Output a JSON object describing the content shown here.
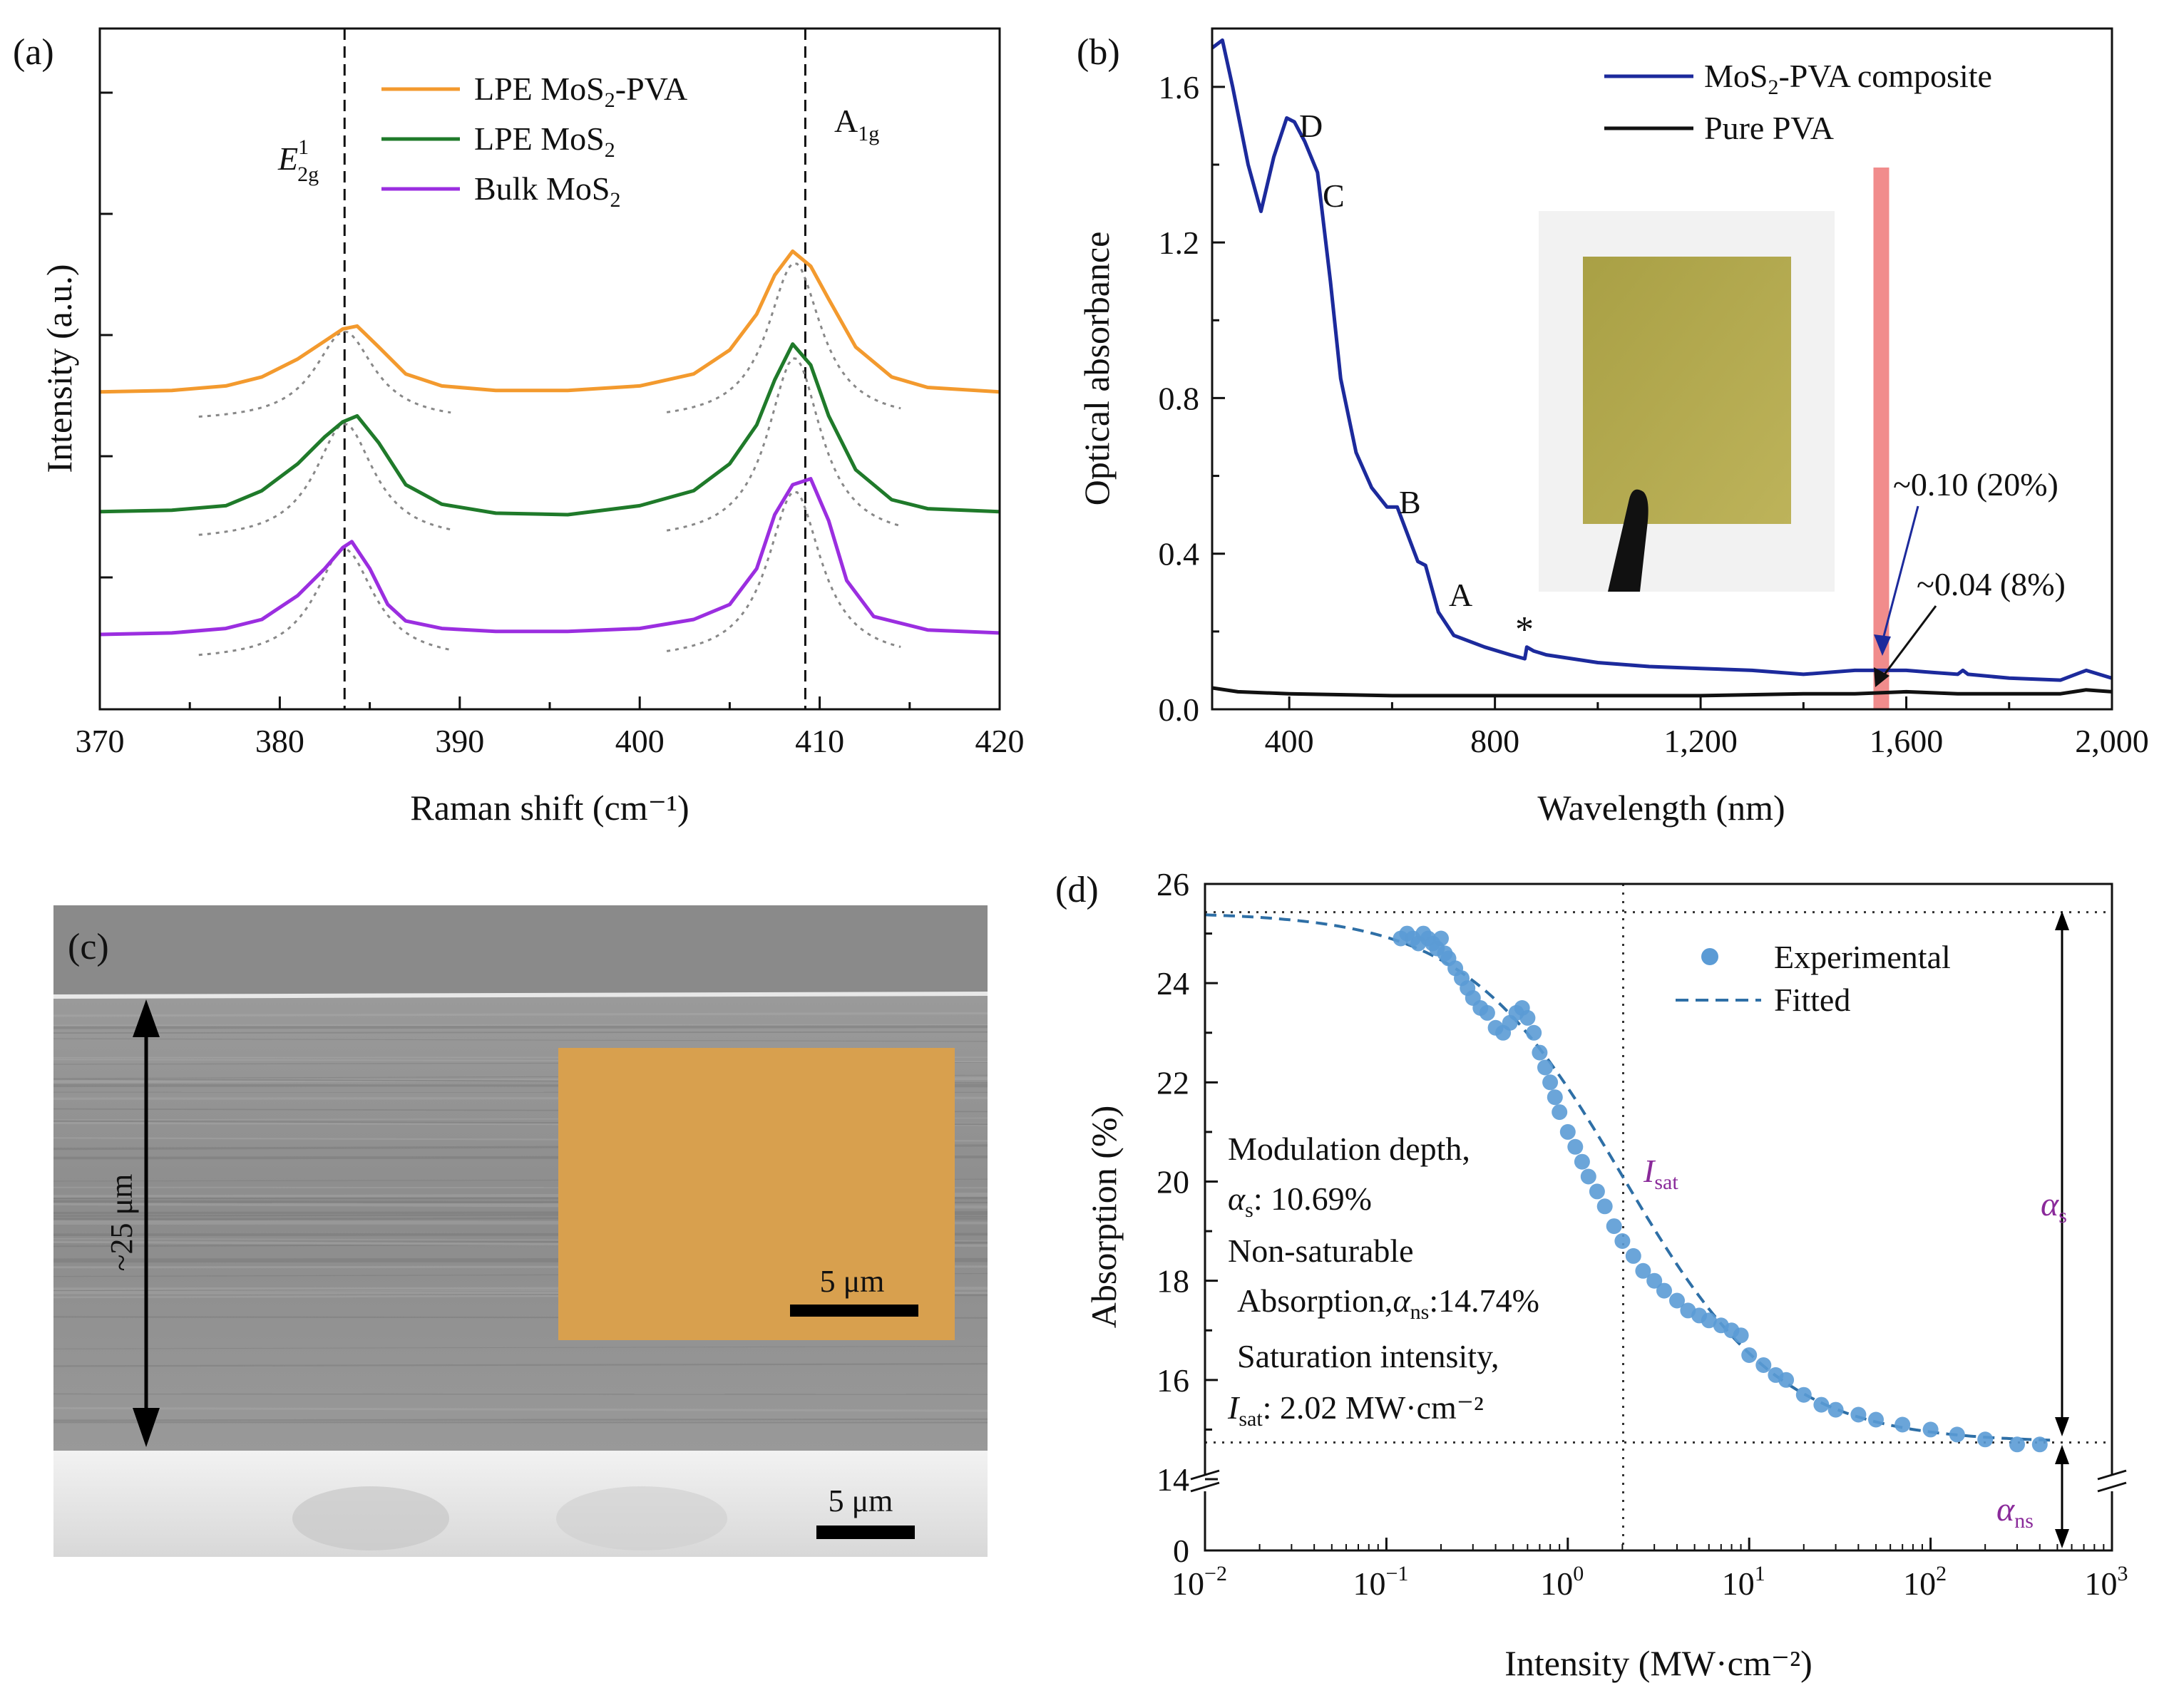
{
  "colors": {
    "lpe_mos2_pva": "#f39a2e",
    "lpe_mos2": "#1f7a2a",
    "bulk_mos2": "#9b2ee0",
    "composite": "#1c2a9c",
    "pure_pva": "#111111",
    "laser_band": "#f08080",
    "experimental": "#5b9bd5",
    "fitted": "#2e6fa6",
    "annotation_purple": "#8a2a9a",
    "sem_inset": "#d8a04e"
  },
  "chart_data": [
    {
      "panel": "(a)",
      "type": "line",
      "xlabel": "Raman shift (cm⁻¹)",
      "ylabel": "Intensity (a.u.)",
      "xlim": [
        370,
        420
      ],
      "xticks": [
        "370",
        "380",
        "390",
        "400",
        "410",
        "420"
      ],
      "y_ticks_labeled": false,
      "legend": [
        "LPE MoS₂-PVA",
        "LPE MoS₂",
        "Bulk MoS₂"
      ],
      "legend_position": "top-center",
      "peak_labels": {
        "e2g": "E",
        "e2g_sup": "1",
        "e2g_sub": "2g",
        "a1g": "A",
        "a1g_sub": "1g"
      },
      "reference_lines": [
        383.6,
        409.2
      ],
      "series": [
        {
          "name": "LPE MoS₂-PVA",
          "color_key": "lpe_mos2_pva",
          "offset": 8,
          "x": [
            370,
            374,
            377,
            379,
            381,
            382.5,
            383.5,
            384.3,
            385.5,
            387,
            389,
            392,
            396,
            400,
            403,
            405,
            406.5,
            407.5,
            408.5,
            409.5,
            410.5,
            412,
            414,
            416,
            420
          ],
          "y": [
            0.1,
            0.15,
            0.3,
            0.6,
            1.2,
            1.8,
            2.2,
            2.3,
            1.6,
            0.7,
            0.3,
            0.15,
            0.15,
            0.3,
            0.7,
            1.5,
            2.7,
            4.0,
            4.8,
            4.3,
            3.2,
            1.6,
            0.6,
            0.25,
            0.1
          ]
        },
        {
          "name": "LPE MoS₂",
          "color_key": "lpe_mos2",
          "offset": 4,
          "x": [
            370,
            374,
            377,
            379,
            381,
            382.5,
            383.5,
            384.3,
            385.5,
            387,
            389,
            392,
            396,
            400,
            403,
            405,
            406.5,
            407.5,
            408.5,
            409.5,
            410.5,
            412,
            414,
            416,
            420
          ],
          "y": [
            0.1,
            0.15,
            0.3,
            0.8,
            1.7,
            2.6,
            3.1,
            3.3,
            2.4,
            1.0,
            0.35,
            0.05,
            0.0,
            0.3,
            0.8,
            1.7,
            3.0,
            4.5,
            5.7,
            5.0,
            3.3,
            1.5,
            0.5,
            0.2,
            0.1
          ]
        },
        {
          "name": "Bulk MoS₂",
          "color_key": "bulk_mos2",
          "offset": 0,
          "x": [
            370,
            374,
            377,
            379,
            381,
            382.5,
            383.5,
            384,
            385,
            386,
            387,
            389,
            392,
            396,
            400,
            403,
            405,
            406.5,
            407.5,
            408.5,
            409.5,
            410.5,
            411.5,
            413,
            416,
            420
          ],
          "y": [
            0.0,
            0.05,
            0.2,
            0.5,
            1.3,
            2.2,
            2.9,
            3.1,
            2.2,
            1.0,
            0.45,
            0.2,
            0.1,
            0.1,
            0.2,
            0.5,
            1.0,
            2.2,
            4.0,
            5.0,
            5.2,
            3.8,
            1.8,
            0.6,
            0.15,
            0.05
          ]
        }
      ]
    },
    {
      "panel": "(b)",
      "type": "line",
      "xlabel": "Wavelength (nm)",
      "ylabel": "Optical absorbance",
      "xlim": [
        250,
        2000
      ],
      "ylim": [
        0,
        1.75
      ],
      "xticks": [
        "400",
        "800",
        "1,200",
        "1,600",
        "2,000"
      ],
      "yticks": [
        "0.0",
        "0.4",
        "0.8",
        "1.2",
        "1.6"
      ],
      "legend": [
        "MoS₂-PVA composite",
        "Pure PVA"
      ],
      "legend_position": "top-right",
      "peak_letters": [
        "D",
        "C",
        "B",
        "A",
        "*"
      ],
      "annotations": [
        "~0.10 (20%)",
        "~0.04 (8%)"
      ],
      "laser_wavelength_nm": 1550,
      "inset": "photograph of MoS₂-PVA composite film held by tweezers",
      "series": [
        {
          "name": "MoS₂-PVA composite",
          "color_key": "composite",
          "x": [
            250,
            270,
            290,
            320,
            345,
            370,
            395,
            410,
            430,
            455,
            480,
            500,
            530,
            560,
            590,
            610,
            630,
            650,
            665,
            690,
            720,
            780,
            830,
            858,
            862,
            875,
            900,
            1000,
            1100,
            1200,
            1300,
            1400,
            1500,
            1600,
            1650,
            1700,
            1710,
            1720,
            1800,
            1900,
            1950,
            2000
          ],
          "y": [
            1.7,
            1.72,
            1.6,
            1.4,
            1.28,
            1.42,
            1.52,
            1.51,
            1.46,
            1.38,
            1.1,
            0.85,
            0.66,
            0.57,
            0.52,
            0.52,
            0.45,
            0.38,
            0.37,
            0.25,
            0.19,
            0.16,
            0.14,
            0.13,
            0.16,
            0.15,
            0.14,
            0.12,
            0.11,
            0.105,
            0.1,
            0.09,
            0.1,
            0.1,
            0.095,
            0.09,
            0.1,
            0.09,
            0.08,
            0.075,
            0.1,
            0.08
          ]
        },
        {
          "name": "Pure PVA",
          "color_key": "pure_pva",
          "x": [
            250,
            300,
            400,
            600,
            800,
            1000,
            1200,
            1400,
            1500,
            1600,
            1700,
            1800,
            1900,
            1950,
            2000
          ],
          "y": [
            0.055,
            0.045,
            0.04,
            0.035,
            0.035,
            0.035,
            0.035,
            0.04,
            0.04,
            0.045,
            0.04,
            0.04,
            0.04,
            0.05,
            0.045
          ]
        }
      ]
    },
    {
      "panel": "(d)",
      "type": "scatter",
      "xlabel": "Intensity (MW·cm⁻²)",
      "ylabel": "Absorption (%)",
      "xscale": "log",
      "xlim": [
        0.01,
        1000
      ],
      "ylim_upper": [
        14,
        26
      ],
      "y_axis_break": true,
      "xticks": [
        {
          "base": "10",
          "exp": "−2"
        },
        {
          "base": "10",
          "exp": "−1"
        },
        {
          "base": "10",
          "exp": "0"
        },
        {
          "base": "10",
          "exp": "1"
        },
        {
          "base": "10",
          "exp": "2"
        },
        {
          "base": "10",
          "exp": "3"
        }
      ],
      "yticks": [
        "0",
        "14",
        "16",
        "18",
        "20",
        "22",
        "24",
        "26"
      ],
      "legend": [
        "Experimental",
        "Fitted"
      ],
      "legend_position": "top-right",
      "fit": {
        "alpha_s": 10.69,
        "alpha_ns": 14.74,
        "I_sat": 2.02
      },
      "text_block": [
        "Modulation depth,",
        "αs: 10.69%",
        "Non-saturable",
        "Absorption, αns:14.74%",
        "Saturation intensity,",
        "Isat: 2.02 MW·cm⁻²"
      ],
      "labels": {
        "isat_main": "I",
        "isat_sub": "sat",
        "alpha_main": "α",
        "alpha_s_sub": "s",
        "alpha_ns_sub": "ns"
      },
      "experimental": {
        "x": [
          0.12,
          0.13,
          0.14,
          0.15,
          0.16,
          0.17,
          0.18,
          0.19,
          0.2,
          0.21,
          0.22,
          0.24,
          0.26,
          0.28,
          0.3,
          0.33,
          0.36,
          0.4,
          0.44,
          0.48,
          0.52,
          0.56,
          0.6,
          0.65,
          0.7,
          0.75,
          0.8,
          0.85,
          0.9,
          1.0,
          1.1,
          1.2,
          1.3,
          1.45,
          1.6,
          1.8,
          2.0,
          2.3,
          2.6,
          3.0,
          3.4,
          4.0,
          4.6,
          5.3,
          6.0,
          7.0,
          8.0,
          9.0,
          10,
          12,
          14,
          16,
          20,
          25,
          30,
          40,
          50,
          70,
          100,
          140,
          200,
          300,
          400
        ],
        "y": [
          24.9,
          25.0,
          24.9,
          24.8,
          25.0,
          24.9,
          24.8,
          24.7,
          24.9,
          24.6,
          24.5,
          24.3,
          24.1,
          23.9,
          23.7,
          23.5,
          23.4,
          23.1,
          23.0,
          23.2,
          23.4,
          23.5,
          23.3,
          23.0,
          22.6,
          22.3,
          22.0,
          21.7,
          21.4,
          21.0,
          20.7,
          20.4,
          20.1,
          19.8,
          19.5,
          19.1,
          18.8,
          18.5,
          18.2,
          18.0,
          17.8,
          17.6,
          17.4,
          17.3,
          17.2,
          17.1,
          17.0,
          16.9,
          16.5,
          16.3,
          16.1,
          16.0,
          15.7,
          15.5,
          15.4,
          15.3,
          15.2,
          15.1,
          15.0,
          14.9,
          14.8,
          14.7,
          14.7
        ]
      }
    }
  ],
  "panel_b_labels": {
    "composite_pre": "MoS",
    "composite_sub": "2",
    "composite_post": "-PVA composite",
    "pure": "Pure PVA",
    "D": "D",
    "C": "C",
    "B": "B",
    "A": "A",
    "star": "*",
    "ann1": "~0.10 (20%)",
    "ann2": "~0.04 (8%)"
  },
  "panel_a_legend_parts": [
    {
      "pre": "LPE MoS",
      "sub": "2",
      "post": "-PVA"
    },
    {
      "pre": "LPE MoS",
      "sub": "2",
      "post": ""
    },
    {
      "pre": "Bulk MoS",
      "sub": "2",
      "post": ""
    }
  ],
  "panel_c": {
    "label": "(c)",
    "thickness_label": "~25 μm",
    "scale_bar_main": "5 μm",
    "scale_bar_inset": "5 μm"
  },
  "panel_labels": {
    "a": "(a)",
    "b": "(b)",
    "d": "(d)"
  },
  "panel_d_text": {
    "line1": "Modulation depth,",
    "line2_sym": "α",
    "line2_sub": "s",
    "line2_rest": ": 10.69%",
    "line3": "Non-saturable",
    "line4_pre": "Absorption,",
    "line4_sym": "α",
    "line4_sub": "ns",
    "line4_rest": ":14.74%",
    "line5": "Saturation intensity,",
    "line6_sym": "I",
    "line6_sub": "sat",
    "line6_rest": ": 2.02 MW·cm⁻²"
  }
}
